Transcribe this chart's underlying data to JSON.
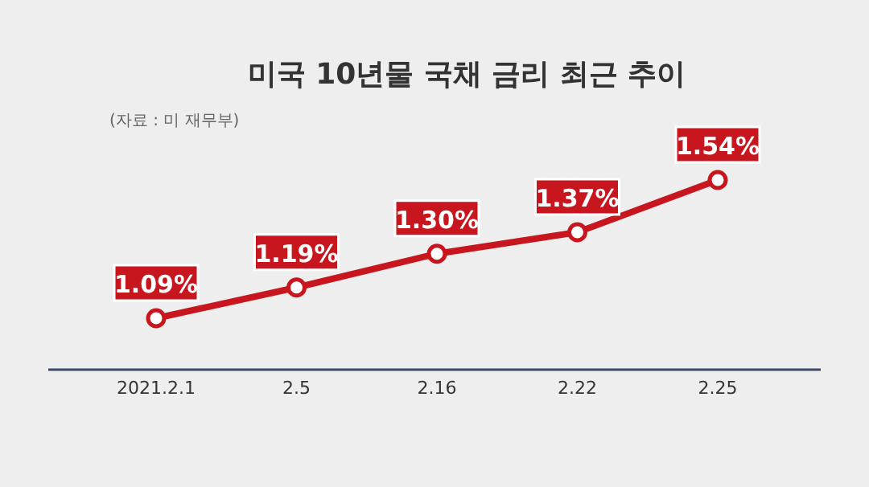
{
  "chart_data": {
    "type": "line",
    "title": "미국 10년물 국채 금리 최근 추이",
    "annotations": [
      "(자료 : 미 재무부)"
    ],
    "categories": [
      "2021.2.1",
      "2.5",
      "2.16",
      "2.22",
      "2.25"
    ],
    "series": [
      {
        "color": "#c8161e",
        "values": [
          1.09,
          1.19,
          1.3,
          1.37,
          1.54
        ],
        "value_labels": [
          "1.09%",
          "1.19%",
          "1.30%",
          "1.37%",
          "1.54%"
        ]
      }
    ],
    "marker": "circle",
    "line_style": "solid"
  }
}
